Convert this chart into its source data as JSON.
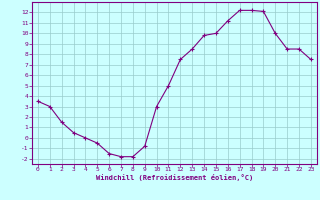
{
  "xlabel": "Windchill (Refroidissement éolien,°C)",
  "x": [
    0,
    1,
    2,
    3,
    4,
    5,
    6,
    7,
    8,
    9,
    10,
    11,
    12,
    13,
    14,
    15,
    16,
    17,
    18,
    19,
    20,
    21,
    22,
    23
  ],
  "y": [
    3.5,
    3.0,
    1.5,
    0.5,
    0.0,
    -0.5,
    -1.5,
    -1.8,
    -1.8,
    -0.8,
    3.0,
    5.0,
    7.5,
    8.5,
    9.8,
    10.0,
    11.2,
    12.2,
    12.2,
    12.1,
    10.0,
    8.5,
    8.5,
    7.5
  ],
  "line_color": "#800080",
  "marker_color": "#800080",
  "bg_color": "#ccffff",
  "grid_color": "#99cccc",
  "tick_color": "#800080",
  "label_color": "#800080",
  "spine_color": "#800080",
  "ylim": [
    -2.5,
    13.0
  ],
  "xlim": [
    -0.5,
    23.5
  ],
  "yticks": [
    -2,
    -1,
    0,
    1,
    2,
    3,
    4,
    5,
    6,
    7,
    8,
    9,
    10,
    11,
    12
  ],
  "xticks": [
    0,
    1,
    2,
    3,
    4,
    5,
    6,
    7,
    8,
    9,
    10,
    11,
    12,
    13,
    14,
    15,
    16,
    17,
    18,
    19,
    20,
    21,
    22,
    23
  ]
}
